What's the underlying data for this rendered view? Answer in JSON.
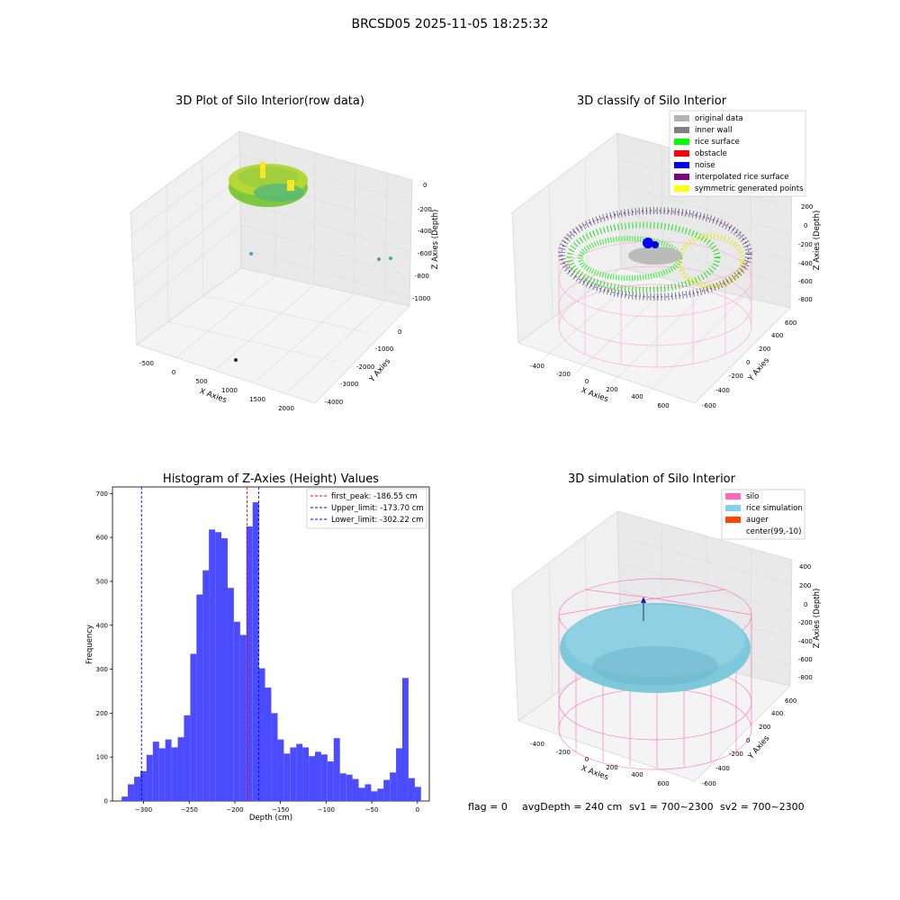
{
  "figure": {
    "suptitle": "BRCSD05 2025-11-05 18:25:32"
  },
  "panel1": {
    "title": "3D Plot of Silo Interior(row data)",
    "xlabel": "X Axies",
    "ylabel": "Y Axies",
    "zlabel": "Z Axies (Depth)",
    "xticks": [
      "-500",
      "0",
      "500",
      "1000",
      "1500",
      "2000"
    ],
    "yticks": [
      "0",
      "-1000",
      "-2000",
      "-3000",
      "-4000"
    ],
    "zticks": [
      "0",
      "-200",
      "-400",
      "-600",
      "-800",
      "-1000"
    ]
  },
  "panel2": {
    "title": "3D classify of Silo Interior",
    "xlabel": "X Axies",
    "ylabel": "Y Axies",
    "zlabel": "Z Axies (Depth)",
    "xticks": [
      "-400",
      "-200",
      "0",
      "200",
      "400",
      "600"
    ],
    "yticks": [
      "600",
      "400",
      "200",
      "0",
      "-200",
      "-400",
      "-600"
    ],
    "zticks": [
      "200",
      "0",
      "-200",
      "-400",
      "-600",
      "-800"
    ],
    "legend": [
      {
        "label": "original data",
        "color": "#b3b3b3"
      },
      {
        "label": "inner wall",
        "color": "#808080"
      },
      {
        "label": "rice surface",
        "color": "#00ff00"
      },
      {
        "label": "obstacle",
        "color": "#ff0000"
      },
      {
        "label": "noise",
        "color": "#0000ff"
      },
      {
        "label": "interpolated rice surface",
        "color": "#800080"
      },
      {
        "label": "symmetric generated points",
        "color": "#ffff00"
      }
    ]
  },
  "panel4": {
    "title": "3D simulation of Silo Interior",
    "xlabel": "X Axies",
    "ylabel": "Y Axies",
    "zlabel": "Z Axies (Depth)",
    "xticks": [
      "-400",
      "-200",
      "0",
      "200",
      "400",
      "600"
    ],
    "yticks": [
      "600",
      "400",
      "200",
      "0",
      "-200",
      "-400",
      "-600"
    ],
    "zticks": [
      "400",
      "200",
      "0",
      "-200",
      "-400",
      "-600",
      "-800"
    ],
    "legend": [
      {
        "label": "silo",
        "color": "#ff69b4"
      },
      {
        "label": "rice simulation",
        "color": "#87ceeb"
      },
      {
        "label": "auger",
        "color": "#ff4500"
      },
      {
        "label": "center(99,-10)",
        "color": ""
      }
    ]
  },
  "footer": {
    "flag": "flag = 0",
    "avg_depth": "avgDepth = 240 cm",
    "sv1": "sv1 = 700~2300",
    "sv2": "sv2 = 700~2300"
  },
  "chart_data": {
    "type": "bar",
    "title": "Histogram of Z-Axies (Height) Values",
    "xlabel": "Depth (cm)",
    "ylabel": "Frequency",
    "xlim": [
      -334,
      13
    ],
    "ylim": [
      0,
      715
    ],
    "xticks": [
      -300,
      -250,
      -200,
      -150,
      -100,
      -50,
      0
    ],
    "yticks": [
      0,
      100,
      200,
      300,
      400,
      500,
      600,
      700
    ],
    "bar_color": "#4b4bff",
    "bin_width": 6.83,
    "bin_starts": [
      -324,
      -317.2,
      -310.3,
      -303.5,
      -296.7,
      -289.8,
      -283,
      -276.2,
      -269.3,
      -262.5,
      -255.7,
      -248.8,
      -242,
      -235.2,
      -228.4,
      -221.5,
      -214.7,
      -207.9,
      -201,
      -194.2,
      -187.4,
      -180.5,
      -173.7,
      -166.9,
      -160,
      -153.2,
      -146.4,
      -139.5,
      -132.7,
      -125.9,
      -119,
      -112.2,
      -105.4,
      -98.5,
      -91.7,
      -84.9,
      -78,
      -71.2,
      -64.4,
      -57.5,
      -50.7,
      -43.9,
      -37.1,
      -30.2,
      -23.4,
      -16.6,
      -9.7,
      -2.9
    ],
    "values": [
      10,
      38,
      55,
      68,
      105,
      135,
      120,
      140,
      122,
      145,
      195,
      335,
      470,
      525,
      618,
      612,
      598,
      485,
      408,
      378,
      625,
      680,
      302,
      258,
      200,
      140,
      108,
      122,
      130,
      122,
      102,
      112,
      106,
      90,
      143,
      63,
      60,
      50,
      30,
      38,
      22,
      28,
      48,
      65,
      120,
      280,
      52,
      32
    ],
    "vlines": [
      {
        "label": "first_peak: -186.55 cm",
        "x": -186.55,
        "color": "#ff0000"
      },
      {
        "label": "Upper_limit: -173.70 cm",
        "x": -173.7,
        "color": "#0000ff"
      },
      {
        "label": "Lower_limit: -302.22 cm",
        "x": -302.22,
        "color": "#0000ff"
      }
    ]
  }
}
